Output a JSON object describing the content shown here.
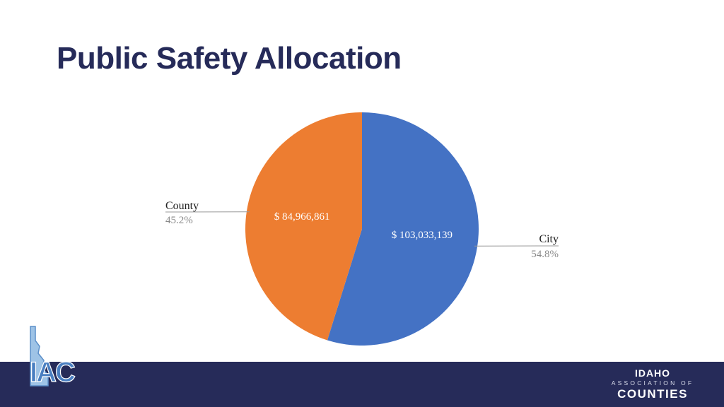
{
  "slide": {
    "title": "Public Safety Allocation"
  },
  "chart_data": {
    "type": "pie",
    "title": "",
    "categories": [
      "County",
      "City"
    ],
    "values": [
      84966861,
      103033139
    ],
    "value_labels": [
      "$ 84,966,861",
      "$ 103,033,139"
    ],
    "percent_labels": [
      "45.2%",
      "54.8%"
    ],
    "colors": [
      "#ed7d31",
      "#4472c4"
    ],
    "legend": "none"
  },
  "footer": {
    "logo_text": "IAC",
    "logo_icon": "idaho-state-outline-icon",
    "wordmark": {
      "line1": "IDAHO",
      "line2": "ASSOCIATION OF",
      "line3": "COUNTIES"
    },
    "background_color": "#262b59"
  }
}
